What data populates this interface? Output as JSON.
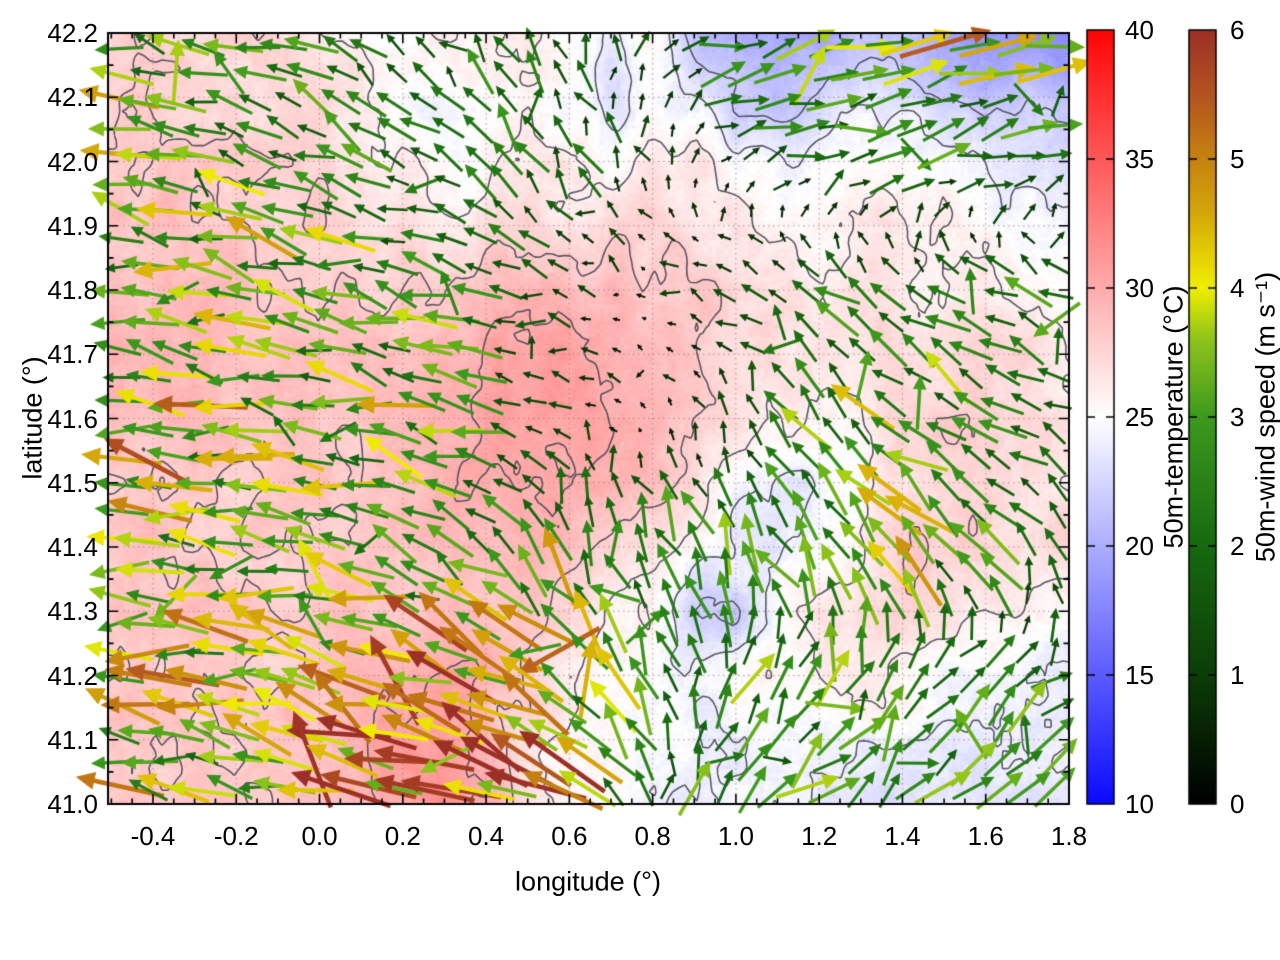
{
  "figure": {
    "xlabel": "longitude (°)",
    "ylabel": "latitude (°)"
  },
  "chart_data": {
    "type": "heatmap",
    "subtype": "temperature-field-with-contours-and-wind-vector-overlay",
    "xlabel": "longitude (°)",
    "ylabel": "latitude (°)",
    "xlim": [
      -0.508,
      1.8
    ],
    "ylim": [
      41.0,
      42.2
    ],
    "x_major_ticks": [
      -0.4,
      -0.2,
      0.0,
      0.2,
      0.4,
      0.6,
      0.8,
      1.0,
      1.2,
      1.4,
      1.6,
      1.8
    ],
    "x_tick_labels": [
      "-0.4",
      "-0.2",
      "0.0",
      "0.2",
      "0.4",
      "0.6",
      "0.8",
      "1.0",
      "1.2",
      "1.4",
      "1.6",
      "1.8"
    ],
    "y_major_ticks": [
      41.0,
      41.1,
      41.2,
      41.3,
      41.4,
      41.5,
      41.6,
      41.7,
      41.8,
      41.9,
      42.0,
      42.1,
      42.2
    ],
    "y_tick_labels": [
      "41.0",
      "41.1",
      "41.2",
      "41.3",
      "41.4",
      "41.5",
      "41.6",
      "41.7",
      "41.8",
      "41.9",
      "42.0",
      "42.1",
      "42.2"
    ],
    "minor_tick_step": 0.05,
    "grid": {
      "x_step": 0.2,
      "y_step": 0.1,
      "style": "dotted",
      "color": "rgba(170,130,130,0.85)"
    },
    "contours": {
      "levels": [
        22,
        24,
        26,
        28,
        30
      ],
      "color": "rgba(72,72,84,0.9)"
    },
    "temperature": {
      "label": "50m-temperature (°C)",
      "units": "°C",
      "range": [
        10,
        40
      ],
      "ticks": [
        10,
        15,
        20,
        25,
        30,
        35,
        40
      ],
      "tick_labels": [
        "10",
        "15",
        "20",
        "25",
        "30",
        "35",
        "40"
      ],
      "palette": [
        [
          10,
          "#0a0aff"
        ],
        [
          25,
          "#ffffff"
        ],
        [
          40,
          "#ff0505"
        ]
      ],
      "grid_lats_desc": [
        42.2,
        42.1,
        42.0,
        41.9,
        41.8,
        41.7,
        41.6,
        41.5,
        41.4,
        41.3,
        41.2,
        41.1,
        41.0
      ],
      "values": [
        [
          28,
          27.8,
          27.5,
          27.5,
          27.3,
          26.5,
          25.5,
          25,
          25.5,
          26,
          26,
          25,
          24,
          25.5,
          21,
          19.5,
          19,
          19.5,
          21,
          21,
          19.5,
          18.5,
          18,
          18
        ],
        [
          28,
          28,
          27.6,
          27.5,
          27,
          27,
          26.5,
          25,
          24.5,
          25.5,
          26,
          24.5,
          23.5,
          25,
          24,
          22,
          21,
          22.5,
          23.5,
          23,
          22,
          21,
          21.5,
          21
        ],
        [
          28.5,
          28.5,
          28,
          28,
          27.5,
          27.5,
          27,
          26,
          25,
          25.5,
          26.5,
          26,
          25.5,
          26,
          26.5,
          25,
          24,
          24.5,
          25.5,
          26,
          25,
          24,
          23.5,
          23
        ],
        [
          28.5,
          29,
          28.5,
          28.5,
          28,
          28,
          27.5,
          27,
          26.5,
          27,
          27.5,
          27,
          27,
          27.5,
          27,
          26.5,
          26,
          26,
          26.5,
          26,
          25.5,
          25,
          24.5,
          24.5
        ],
        [
          29,
          29,
          29,
          28.5,
          28.5,
          28,
          28,
          28,
          28.5,
          29,
          29.5,
          29.5,
          29,
          28.5,
          28,
          27.5,
          27,
          26.5,
          27,
          26.5,
          26,
          26.5,
          26,
          25.5
        ],
        [
          29,
          29.5,
          29,
          29,
          28.5,
          28.5,
          28.5,
          29,
          29.5,
          30,
          30.5,
          30.5,
          30,
          29.5,
          28.5,
          27.5,
          27,
          26.5,
          27,
          27.5,
          27,
          27.5,
          27,
          26
        ],
        [
          29,
          29,
          29,
          28.5,
          28.5,
          28.5,
          28.5,
          29,
          29.5,
          30.5,
          31,
          30.5,
          30,
          29.5,
          28.5,
          27,
          26,
          25.5,
          26,
          27.5,
          28,
          28,
          27.5,
          26.5
        ],
        [
          28.5,
          28.5,
          28.5,
          28,
          28,
          28.5,
          28.5,
          29,
          29.5,
          30,
          30.5,
          30,
          29.5,
          28.5,
          27.5,
          24.5,
          24,
          24,
          25,
          27,
          27.5,
          27.5,
          27,
          26.5
        ],
        [
          28.5,
          28.5,
          28,
          28,
          28,
          28.5,
          28.5,
          28.5,
          29,
          29.5,
          29.5,
          29,
          28,
          27,
          25.5,
          24,
          23.5,
          24.5,
          26,
          27.5,
          28,
          27.5,
          27,
          27.5
        ],
        [
          28.5,
          28.5,
          28.5,
          28,
          28,
          28,
          28.5,
          28.5,
          29,
          28.5,
          28,
          27.5,
          26.5,
          25.5,
          21.5,
          22,
          25,
          26.5,
          27.5,
          27.5,
          27,
          26.5,
          26,
          25.5
        ],
        [
          28,
          28.5,
          28.5,
          28,
          28,
          28.5,
          29,
          30,
          30.5,
          29.5,
          28,
          26.5,
          25.5,
          25,
          24,
          25,
          25.5,
          26,
          26.5,
          26,
          24.5,
          24,
          24,
          24
        ],
        [
          28,
          28,
          28.5,
          28,
          28.5,
          29,
          29.5,
          30.5,
          31,
          29.5,
          26.5,
          26,
          25.5,
          25,
          24.5,
          24,
          24,
          24,
          24,
          24,
          24,
          23.5,
          23.5,
          23.5
        ],
        [
          27.5,
          28,
          28,
          28,
          28.5,
          29,
          29.5,
          30.5,
          31.5,
          30,
          26.5,
          25.5,
          25.5,
          24.5,
          24,
          24,
          24,
          24,
          23.5,
          23.5,
          23.5,
          23.5,
          23.5,
          23.5
        ]
      ]
    },
    "wind": {
      "label": "50m-wind speed (m s⁻¹)",
      "units": "m s⁻¹",
      "range": [
        0,
        6
      ],
      "ticks": [
        0,
        1,
        2,
        3,
        4,
        5,
        6
      ],
      "tick_labels": [
        "0",
        "1",
        "2",
        "3",
        "4",
        "5",
        "6"
      ],
      "palette": [
        [
          0,
          "#000000"
        ],
        [
          1,
          "#0c3e08"
        ],
        [
          2,
          "#176a10"
        ],
        [
          3,
          "#3d9a1e"
        ],
        [
          3.6,
          "#8ec41a"
        ],
        [
          4,
          "#f0ee00"
        ],
        [
          4.6,
          "#d4a50a"
        ],
        [
          5,
          "#c6830f"
        ],
        [
          5.5,
          "#b45420"
        ],
        [
          6,
          "#9d3026"
        ]
      ],
      "grid_lats_desc": [
        42.2,
        42.0,
        41.8,
        41.6,
        41.4,
        41.2,
        41.0
      ],
      "u": [
        [
          -2.5,
          -2.5,
          -2,
          -1.5,
          -1,
          -1,
          0.5,
          2,
          3,
          3,
          3.5,
          3
        ],
        [
          -3,
          -3,
          -2.5,
          -2,
          -1.5,
          -1,
          -0.5,
          0.5,
          1.5,
          2,
          2,
          2
        ],
        [
          -3,
          -3,
          -3,
          -2.5,
          -2,
          -1,
          -0.3,
          -1,
          -1.5,
          -1.5,
          -2,
          -2
        ],
        [
          -3,
          -3.5,
          -3,
          -3,
          -2.5,
          -0.8,
          -0.2,
          -0.5,
          -1.5,
          -2,
          -2,
          -1.5
        ],
        [
          -3,
          -3,
          -3,
          -2.5,
          -2,
          -1,
          -0.4,
          -1,
          -2,
          -2.5,
          -2,
          -1
        ],
        [
          -3,
          -3.5,
          -3.5,
          -4,
          -4.2,
          -3.5,
          -1.5,
          0.5,
          1.5,
          1.5,
          1.5,
          1.5
        ],
        [
          -3,
          -3,
          -3.5,
          -4.8,
          -5.4,
          -4.6,
          -1.5,
          1.5,
          2,
          2,
          2,
          2
        ]
      ],
      "v": [
        [
          0.5,
          0.8,
          1,
          1.5,
          1.5,
          1.5,
          1,
          0.5,
          0.5,
          0.5,
          0.8,
          0.8
        ],
        [
          0.5,
          0.5,
          0.8,
          1,
          1.5,
          1.5,
          1,
          0.5,
          0.5,
          0.5,
          0.5,
          0.5
        ],
        [
          0.5,
          0.5,
          0.5,
          0.5,
          0.5,
          0.3,
          0.1,
          0.5,
          1,
          1,
          1,
          1
        ],
        [
          0.5,
          0.5,
          0.5,
          0.5,
          0.5,
          0.2,
          0.1,
          1,
          2,
          2,
          1.5,
          1
        ],
        [
          0.5,
          0.5,
          0.5,
          1,
          1.5,
          2.5,
          2.5,
          2,
          2.5,
          2.5,
          2,
          1.5
        ],
        [
          0.5,
          0.5,
          1,
          1.2,
          1.5,
          2,
          2.5,
          2,
          2,
          2,
          1.5,
          1.5
        ],
        [
          0.5,
          0.5,
          1,
          1.4,
          1.5,
          1.5,
          2,
          2,
          2,
          2,
          2,
          2
        ]
      ]
    }
  }
}
